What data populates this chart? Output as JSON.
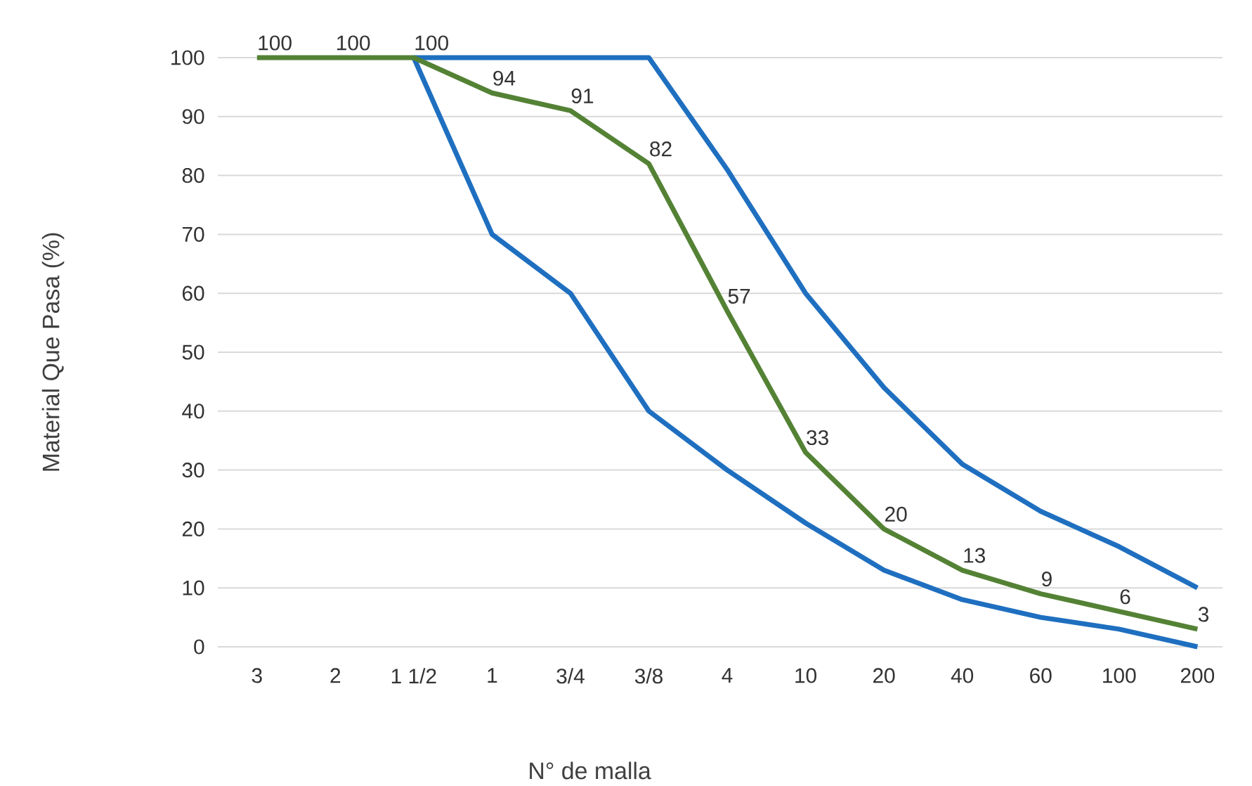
{
  "chart_data": {
    "type": "line",
    "xlabel": "N° de malla",
    "ylabel": "Material Que Pasa (%)",
    "categories": [
      "3",
      "2",
      "1 1/2",
      "1",
      "3/4",
      "3/8",
      "4",
      "10",
      "20",
      "40",
      "60",
      "100",
      "200"
    ],
    "ylim": [
      0,
      100
    ],
    "yticks": [
      0,
      10,
      20,
      30,
      40,
      50,
      60,
      70,
      80,
      90,
      100
    ],
    "grid": "y",
    "marker": "none",
    "line_style": "solid",
    "series": [
      {
        "color": "#1f6fc0",
        "values": [
          null,
          null,
          100,
          100,
          100,
          100,
          81,
          60,
          44,
          31,
          23,
          17,
          10
        ]
      },
      {
        "color": "#1f6fc0",
        "values": [
          null,
          null,
          100,
          70,
          60,
          40,
          30,
          21,
          13,
          8,
          5,
          3,
          0
        ]
      },
      {
        "color": "#548235",
        "values": [
          100,
          100,
          100,
          94,
          91,
          82,
          57,
          33,
          20,
          13,
          9,
          6,
          3
        ],
        "value_labels": [
          "100",
          "100",
          "100",
          "94",
          "91",
          "82",
          "57",
          "33",
          "20",
          "13",
          "9",
          "6",
          "3"
        ]
      }
    ]
  }
}
